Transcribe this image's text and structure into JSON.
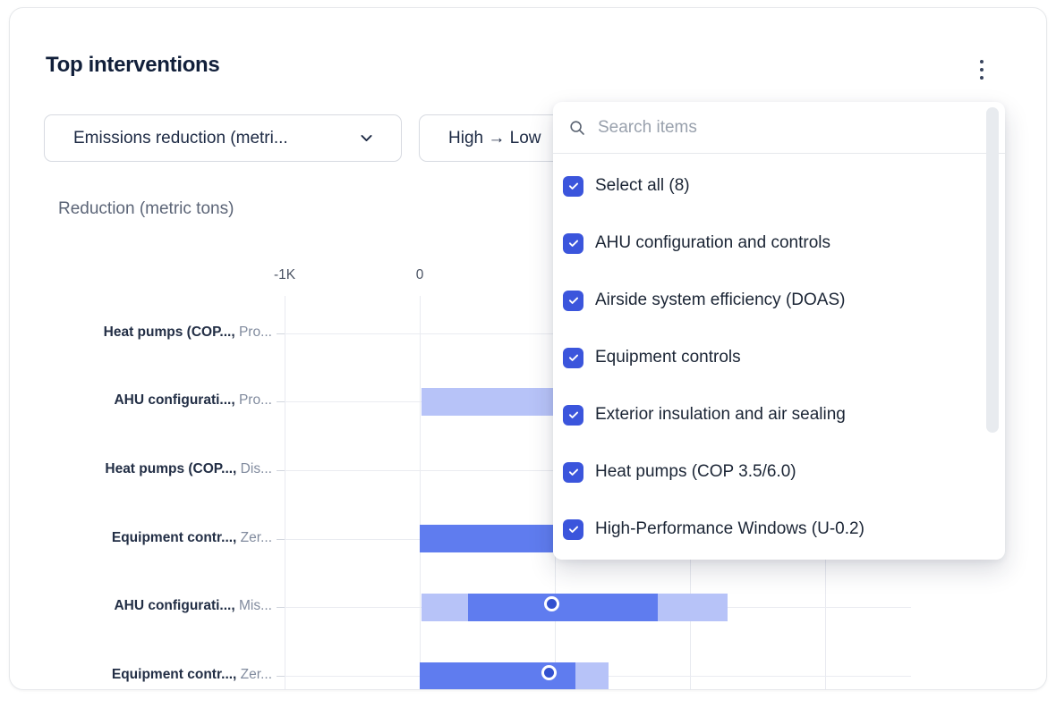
{
  "header": {
    "title": "Top interventions",
    "menu_icon": "kebab-vertical-icon"
  },
  "filters": {
    "metric_dropdown": {
      "value": "Emissions reduction (metri...",
      "icon": "chevron-down-icon"
    },
    "sort_dropdown": {
      "value": "High → Low"
    }
  },
  "dropdown_menu": {
    "search": {
      "placeholder": "Search items",
      "icon": "search-icon",
      "value": ""
    },
    "items": [
      {
        "label": "Select all (8)",
        "checked": true
      },
      {
        "label": "AHU configuration and controls",
        "checked": true
      },
      {
        "label": "Airside system efficiency (DOAS)",
        "checked": true
      },
      {
        "label": "Equipment controls",
        "checked": true
      },
      {
        "label": "Exterior insulation and air sealing",
        "checked": true
      },
      {
        "label": "Heat pumps (COP 3.5/6.0)",
        "checked": true
      },
      {
        "label": "High-Performance Windows (U-0.2)",
        "checked": true
      }
    ],
    "checkbox_color": "#3b55dc"
  },
  "chart_data": {
    "type": "bar",
    "subtype": "horizontal-range-bars-with-median-marker",
    "title": "Reduction (metric tons)",
    "xlabel": "Reduction (metric tons)",
    "xlim": [
      -1000,
      3640
    ],
    "gridlines_x": [
      -1000,
      0,
      1000,
      2000,
      3000
    ],
    "x_tick_labels": [
      {
        "value": -1000,
        "label": "-1K"
      },
      {
        "value": 0,
        "label": "0"
      }
    ],
    "grid": true,
    "note": "Rows 1 and 3 have no bar visible left of the open dropdown overlay; bars of rows 2 and 4 continue underneath the overlay.",
    "rows": [
      {
        "label_bold": "Heat pumps (COP...,",
        "label_gray": "Pro...",
        "segments": [],
        "median": null
      },
      {
        "label_bold": "AHU configurati...,",
        "label_gray": "Pro...",
        "segments": [
          {
            "from": 10,
            "to": 985,
            "tone": "light"
          }
        ],
        "median": null
      },
      {
        "label_bold": "Heat pumps (COP...,",
        "label_gray": "Dis...",
        "segments": [],
        "median": null
      },
      {
        "label_bold": "Equipment contr...,",
        "label_gray": "Zer...",
        "segments": [
          {
            "from": 0,
            "to": 985,
            "tone": "dark"
          }
        ],
        "median": null
      },
      {
        "label_bold": "AHU configurati...,",
        "label_gray": "Mis...",
        "segments": [
          {
            "from": 10,
            "to": 360,
            "tone": "light"
          },
          {
            "from": 360,
            "to": 1760,
            "tone": "dark"
          },
          {
            "from": 1760,
            "to": 2280,
            "tone": "light"
          }
        ],
        "median": 1000
      },
      {
        "label_bold": "Equipment contr...,",
        "label_gray": "Zer...",
        "segments": [
          {
            "from": 0,
            "to": 1150,
            "tone": "dark"
          },
          {
            "from": 1150,
            "to": 1400,
            "tone": "light"
          }
        ],
        "median": 980
      }
    ],
    "colors": {
      "range_light": "#b7c3f8",
      "range_dark": "#5f7cef",
      "median_marker": "#3351cf"
    }
  }
}
